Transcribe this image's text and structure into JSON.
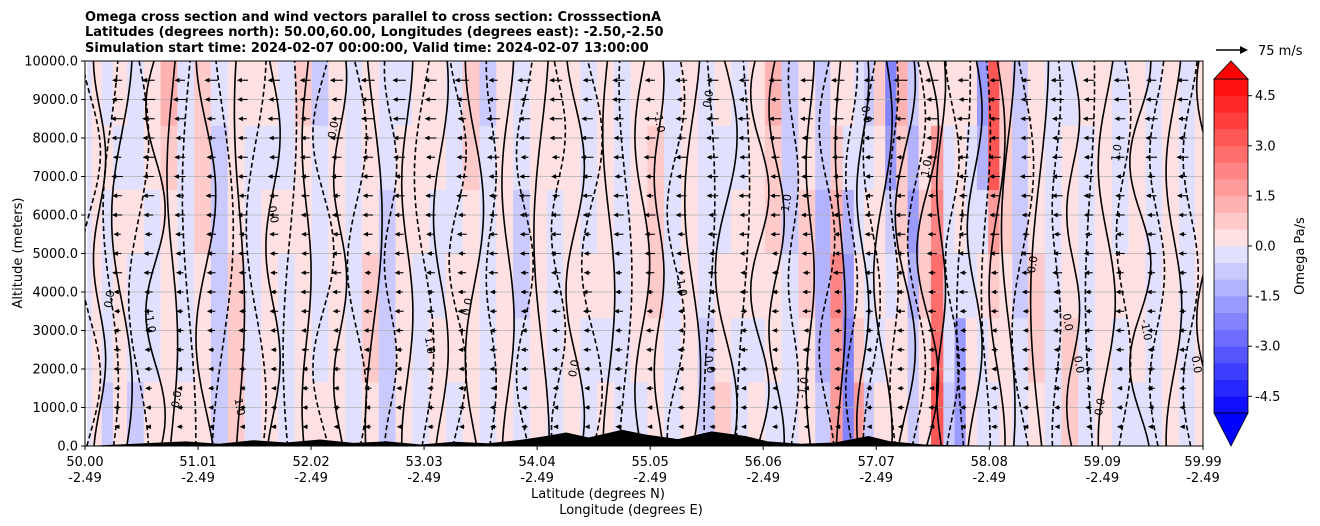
{
  "chart_data": {
    "type": "heatmap",
    "title_lines": [
      "Omega cross section and wind vectors parallel to cross section: CrosssectionA",
      "Latitudes (degrees north): 50.00,60.00, Longitudes (degrees east): -2.50,-2.50",
      "Simulation start time: 2024-02-07 00:00:00, Valid time: 2024-02-07 13:00:00"
    ],
    "xlabel": "Latitude (degrees N)",
    "xlabel2": "Longitude (degrees E)",
    "ylabel": "Altitude (meters)",
    "x_ticks": [
      {
        "lat": "50.00",
        "lon": "-2.49"
      },
      {
        "lat": "51.01",
        "lon": "-2.49"
      },
      {
        "lat": "52.02",
        "lon": "-2.49"
      },
      {
        "lat": "53.03",
        "lon": "-2.49"
      },
      {
        "lat": "54.04",
        "lon": "-2.49"
      },
      {
        "lat": "55.05",
        "lon": "-2.49"
      },
      {
        "lat": "56.06",
        "lon": "-2.49"
      },
      {
        "lat": "57.07",
        "lon": "-2.49"
      },
      {
        "lat": "58.08",
        "lon": "-2.49"
      },
      {
        "lat": "59.09",
        "lon": "-2.49"
      },
      {
        "lat": "59.99",
        "lon": "-2.49"
      }
    ],
    "xlim": [
      50.0,
      59.99
    ],
    "y_ticks": [
      "0.0",
      "1000.0",
      "2000.0",
      "3000.0",
      "4000.0",
      "5000.0",
      "6000.0",
      "7000.0",
      "8000.0",
      "9000.0",
      "10000.0"
    ],
    "ylim": [
      0,
      10000
    ],
    "grid": "horizontal",
    "colorbar": {
      "label": "Omega Pa/s",
      "ticks": [
        "4.5",
        "3.0",
        "1.5",
        "0.0",
        "-1.5",
        "-3.0",
        "-4.5"
      ],
      "range": [
        -5.0,
        5.0
      ],
      "extend": "both",
      "colormap": "bwr",
      "min_color": "#0000ff",
      "max_color": "#ff0000"
    },
    "quiver_key": {
      "label": "75 m/s"
    },
    "omega_columns": [
      {
        "lat": 50.02,
        "omega": -0.4
      },
      {
        "lat": 50.1,
        "omega": 0.3
      },
      {
        "lat": 50.2,
        "omega": -0.5
      },
      {
        "lat": 50.3,
        "omega": 0.4
      },
      {
        "lat": 50.45,
        "omega": -1.2
      },
      {
        "lat": 50.6,
        "omega": 0.3
      },
      {
        "lat": 50.75,
        "omega": 1.0
      },
      {
        "lat": 50.9,
        "omega": -0.4
      },
      {
        "lat": 51.05,
        "omega": 0.5
      },
      {
        "lat": 51.2,
        "omega": -0.6
      },
      {
        "lat": 51.35,
        "omega": 0.6
      },
      {
        "lat": 51.5,
        "omega": -0.3
      },
      {
        "lat": 51.65,
        "omega": 0.2
      },
      {
        "lat": 51.8,
        "omega": -0.4
      },
      {
        "lat": 51.95,
        "omega": 0.8
      },
      {
        "lat": 52.1,
        "omega": -0.5
      },
      {
        "lat": 52.25,
        "omega": 0.4
      },
      {
        "lat": 52.4,
        "omega": -0.3
      },
      {
        "lat": 52.55,
        "omega": 0.5
      },
      {
        "lat": 52.7,
        "omega": -0.6
      },
      {
        "lat": 52.85,
        "omega": 0.3
      },
      {
        "lat": 53.0,
        "omega": -0.2
      },
      {
        "lat": 53.15,
        "omega": 0.4
      },
      {
        "lat": 53.3,
        "omega": -0.3
      },
      {
        "lat": 53.45,
        "omega": 0.6
      },
      {
        "lat": 53.6,
        "omega": -0.4
      },
      {
        "lat": 53.75,
        "omega": 0.3
      },
      {
        "lat": 53.9,
        "omega": -0.5
      },
      {
        "lat": 54.05,
        "omega": 0.2
      },
      {
        "lat": 54.2,
        "omega": -0.3
      },
      {
        "lat": 54.35,
        "omega": 0.4
      },
      {
        "lat": 54.5,
        "omega": -0.2
      },
      {
        "lat": 54.65,
        "omega": 0.3
      },
      {
        "lat": 54.8,
        "omega": -0.4
      },
      {
        "lat": 54.95,
        "omega": 0.2
      },
      {
        "lat": 55.1,
        "omega": 0.5
      },
      {
        "lat": 55.25,
        "omega": -0.3
      },
      {
        "lat": 55.4,
        "omega": 0.4
      },
      {
        "lat": 55.55,
        "omega": -0.5
      },
      {
        "lat": 55.7,
        "omega": 0.6
      },
      {
        "lat": 55.85,
        "omega": -0.3
      },
      {
        "lat": 56.0,
        "omega": 0.4
      },
      {
        "lat": 56.15,
        "omega": 1.2
      },
      {
        "lat": 56.3,
        "omega": -0.6
      },
      {
        "lat": 56.45,
        "omega": 0.5
      },
      {
        "lat": 56.6,
        "omega": -1.0
      },
      {
        "lat": 56.72,
        "omega": 1.8
      },
      {
        "lat": 56.82,
        "omega": -2.5
      },
      {
        "lat": 56.92,
        "omega": 2.0
      },
      {
        "lat": 57.0,
        "omega": -1.5
      },
      {
        "lat": 57.1,
        "omega": 1.0
      },
      {
        "lat": 57.2,
        "omega": -2.0
      },
      {
        "lat": 57.3,
        "omega": 0.8
      },
      {
        "lat": 57.4,
        "omega": -1.2
      },
      {
        "lat": 57.5,
        "omega": 0.5
      },
      {
        "lat": 57.62,
        "omega": 2.8
      },
      {
        "lat": 57.72,
        "omega": -0.5
      },
      {
        "lat": 57.82,
        "omega": -2.2
      },
      {
        "lat": 57.92,
        "omega": 0.6
      },
      {
        "lat": 58.02,
        "omega": -1.8
      },
      {
        "lat": 58.12,
        "omega": 3.2
      },
      {
        "lat": 58.22,
        "omega": 0.8
      },
      {
        "lat": 58.35,
        "omega": -0.6
      },
      {
        "lat": 58.5,
        "omega": 0.5
      },
      {
        "lat": 58.65,
        "omega": -0.4
      },
      {
        "lat": 58.8,
        "omega": 0.6
      },
      {
        "lat": 58.95,
        "omega": -0.3
      },
      {
        "lat": 59.1,
        "omega": 0.4
      },
      {
        "lat": 59.25,
        "omega": -0.5
      },
      {
        "lat": 59.4,
        "omega": 0.3
      },
      {
        "lat": 59.55,
        "omega": -0.4
      },
      {
        "lat": 59.7,
        "omega": 0.3
      },
      {
        "lat": 59.85,
        "omega": -0.2
      },
      {
        "lat": 59.99,
        "omega": 0.2
      }
    ],
    "contour_labels": [
      {
        "text": "0.0",
        "lat": 50.25,
        "alt": 3800
      },
      {
        "text": "-1.0",
        "lat": 50.55,
        "alt": 3200
      },
      {
        "text": "0.0",
        "lat": 50.85,
        "alt": 1200
      },
      {
        "text": "1.0",
        "lat": 51.35,
        "alt": 1000
      },
      {
        "text": "0.0",
        "lat": 52.25,
        "alt": 8200
      },
      {
        "text": "0.0",
        "lat": 51.65,
        "alt": 6000
      },
      {
        "text": "0.0",
        "lat": 53.45,
        "alt": 3600
      },
      {
        "text": "1.0",
        "lat": 53.05,
        "alt": 2600
      },
      {
        "text": "0.0",
        "lat": 54.4,
        "alt": 2000
      },
      {
        "text": "-1.0",
        "lat": 55.1,
        "alt": 8400
      },
      {
        "text": "0.0",
        "lat": 55.6,
        "alt": 9000
      },
      {
        "text": "1.0",
        "lat": 55.3,
        "alt": 4100
      },
      {
        "text": "1.0",
        "lat": 56.3,
        "alt": 6300
      },
      {
        "text": "0.0",
        "lat": 55.55,
        "alt": 2100
      },
      {
        "text": "-1.0",
        "lat": 56.45,
        "alt": 1500
      },
      {
        "text": "0.0",
        "lat": 56.95,
        "alt": 8600
      },
      {
        "text": "1.0",
        "lat": 57.55,
        "alt": 7200
      },
      {
        "text": "0.0",
        "lat": 58.85,
        "alt": 2100
      },
      {
        "text": "0.0",
        "lat": 58.5,
        "alt": 4700
      },
      {
        "text": "0.0",
        "lat": 58.75,
        "alt": 3200
      },
      {
        "text": "1.0",
        "lat": 59.25,
        "alt": 7600
      },
      {
        "text": "0.0",
        "lat": 59.9,
        "alt": 2100
      },
      {
        "text": "0.0",
        "lat": 59.1,
        "alt": 1000
      },
      {
        "text": "-1.0",
        "lat": 59.45,
        "alt": 3000
      }
    ]
  }
}
